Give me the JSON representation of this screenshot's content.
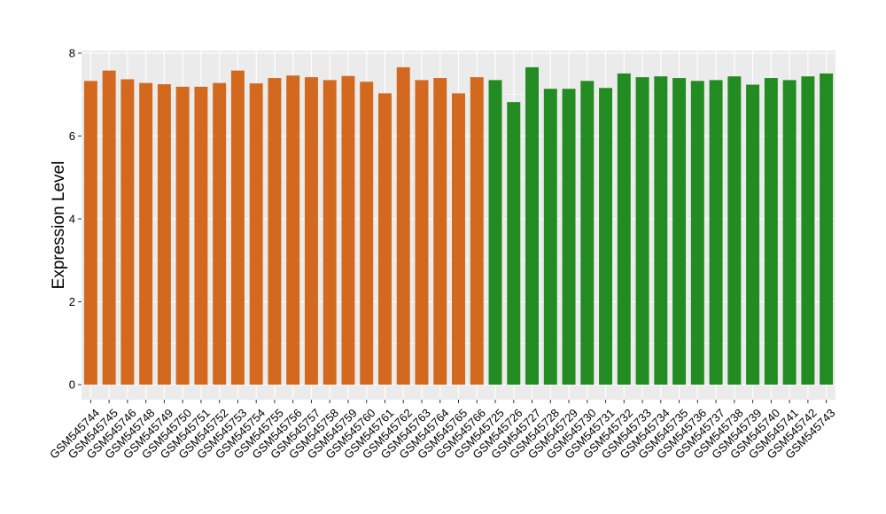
{
  "chart_data": {
    "type": "bar",
    "title": "",
    "xlabel": "",
    "ylabel": "Expression Level",
    "ylim": [
      0,
      8
    ],
    "y_ticks": [
      "0",
      "2",
      "4",
      "6",
      "8"
    ],
    "grid": true,
    "legend": "none",
    "background": "#ebebeb",
    "gridline_color": "#ffffff",
    "categories": [
      "GSM545744",
      "GSM545745",
      "GSM545746",
      "GSM545748",
      "GSM545749",
      "GSM545750",
      "GSM545751",
      "GSM545752",
      "GSM545753",
      "GSM545754",
      "GSM545755",
      "GSM545756",
      "GSM545757",
      "GSM545758",
      "GSM545759",
      "GSM545760",
      "GSM545761",
      "GSM545762",
      "GSM545763",
      "GSM545764",
      "GSM545765",
      "GSM545766",
      "GSM545725",
      "GSM545726",
      "GSM545727",
      "GSM545728",
      "GSM545729",
      "GSM545730",
      "GSM545731",
      "GSM545732",
      "GSM545733",
      "GSM545734",
      "GSM545735",
      "GSM545736",
      "GSM545737",
      "GSM545738",
      "GSM545739",
      "GSM545740",
      "GSM545741",
      "GSM545742",
      "GSM545743"
    ],
    "values": [
      7.33,
      7.58,
      7.37,
      7.28,
      7.25,
      7.19,
      7.19,
      7.28,
      7.58,
      7.27,
      7.4,
      7.46,
      7.42,
      7.35,
      7.45,
      7.31,
      7.03,
      7.66,
      7.35,
      7.4,
      7.03,
      7.42,
      7.35,
      6.82,
      7.66,
      7.14,
      7.14,
      7.33,
      7.16,
      7.51,
      7.42,
      7.44,
      7.4,
      7.33,
      7.35,
      7.44,
      7.24,
      7.4,
      7.35,
      7.44,
      7.51
    ],
    "bar_colors": [
      "#d2691e",
      "#d2691e",
      "#d2691e",
      "#d2691e",
      "#d2691e",
      "#d2691e",
      "#d2691e",
      "#d2691e",
      "#d2691e",
      "#d2691e",
      "#d2691e",
      "#d2691e",
      "#d2691e",
      "#d2691e",
      "#d2691e",
      "#d2691e",
      "#d2691e",
      "#d2691e",
      "#d2691e",
      "#d2691e",
      "#d2691e",
      "#d2691e",
      "#228b22",
      "#228b22",
      "#228b22",
      "#228b22",
      "#228b22",
      "#228b22",
      "#228b22",
      "#228b22",
      "#228b22",
      "#228b22",
      "#228b22",
      "#228b22",
      "#228b22",
      "#228b22",
      "#228b22",
      "#228b22",
      "#228b22",
      "#228b22",
      "#228b22"
    ]
  }
}
